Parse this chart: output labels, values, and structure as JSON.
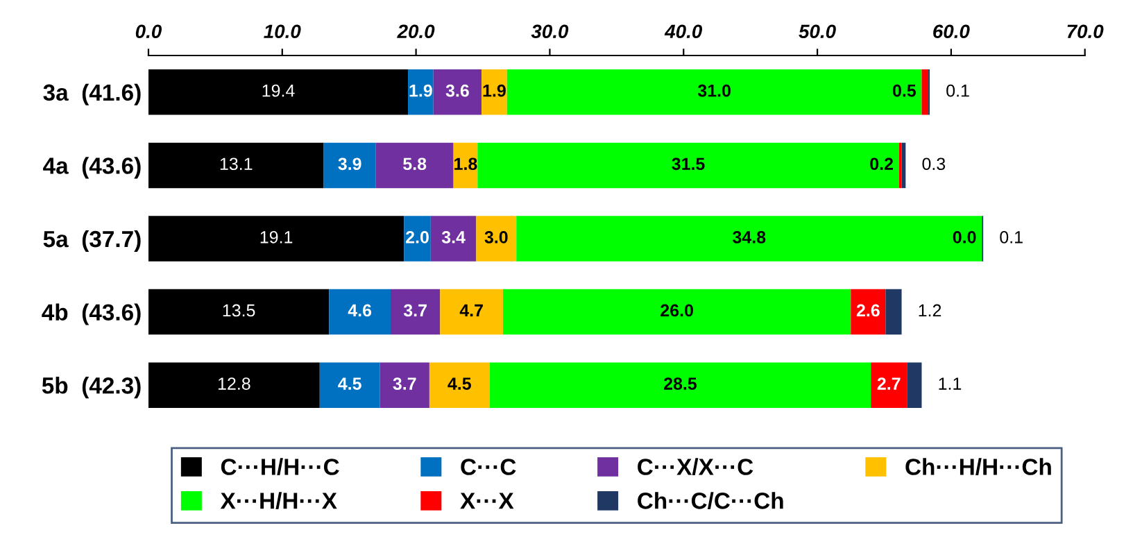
{
  "chart_data": {
    "type": "bar",
    "orientation": "horizontal",
    "stacked": true,
    "grid": false,
    "legend": "bottom",
    "categories": [
      "3a  (41.6)",
      "4a  (43.6)",
      "5a  (37.7)",
      "4b  (43.6)",
      "5b  (42.3)"
    ],
    "xlim": [
      0,
      70
    ],
    "xticks": [
      {
        "value": 0,
        "label": "0.0"
      },
      {
        "value": 10,
        "label": "10.0"
      },
      {
        "value": 20,
        "label": "20.0"
      },
      {
        "value": 30,
        "label": "30.0"
      },
      {
        "value": 40,
        "label": "40.0"
      },
      {
        "value": 50,
        "label": "50.0"
      },
      {
        "value": 60,
        "label": "60.0"
      },
      {
        "value": 70,
        "label": "70.0"
      }
    ],
    "series": [
      {
        "name": "C···H/H···C",
        "color": "#000000",
        "values": [
          19.4,
          13.1,
          19.1,
          13.5,
          12.8
        ],
        "value_labels": [
          "19.4",
          "13.1",
          "19.1",
          "13.5",
          "12.8"
        ]
      },
      {
        "name": "C···C",
        "color": "#0070c0",
        "values": [
          1.9,
          3.9,
          2.0,
          4.6,
          4.5
        ],
        "value_labels": [
          "1.9",
          "3.9",
          "2.0",
          "4.6",
          "4.5"
        ]
      },
      {
        "name": "C···X/X···C",
        "color": "#7030a0",
        "values": [
          3.6,
          5.8,
          3.4,
          3.7,
          3.7
        ],
        "value_labels": [
          "3.6",
          "5.8",
          "3.4",
          "3.7",
          "3.7"
        ]
      },
      {
        "name": "Ch···H/H···Ch",
        "color": "#ffc000",
        "values": [
          1.9,
          1.8,
          3.0,
          4.7,
          4.5
        ],
        "value_labels": [
          "1.9",
          "1.8",
          "3.0",
          "4.7",
          "4.5"
        ]
      },
      {
        "name": "X···H/H···X",
        "color": "#00ff00",
        "values": [
          31.0,
          31.5,
          34.8,
          26.0,
          28.5
        ],
        "value_labels": [
          "31.0",
          "31.5",
          "34.8",
          "26.0",
          "28.5"
        ]
      },
      {
        "name": "X···X",
        "color": "#ff0000",
        "values": [
          0.5,
          0.2,
          0.0,
          2.6,
          2.7
        ],
        "value_labels": [
          "0.5",
          "0.2",
          "0.0",
          "2.6",
          "2.7"
        ]
      },
      {
        "name": "Ch···C/C···Ch",
        "color": "#1f3864",
        "values": [
          0.1,
          0.3,
          0.1,
          1.2,
          1.1
        ],
        "value_labels": [
          "0.1",
          "0.3",
          "0.1",
          "1.2",
          "1.1"
        ]
      }
    ]
  }
}
